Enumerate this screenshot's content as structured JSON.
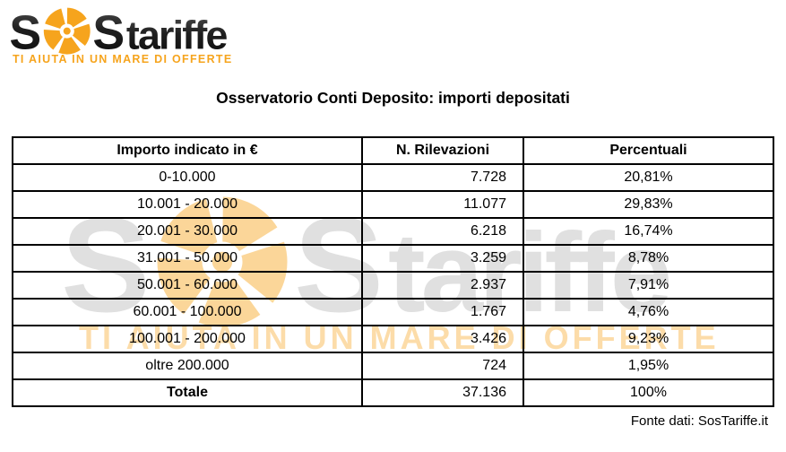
{
  "logo": {
    "s1": "S",
    "s2": "S",
    "rest": "tariffe",
    "tagline": "TI AIUTA IN UN MARE DI OFFERTE",
    "orange": "#F6A41D",
    "dark": "#1c1c1c"
  },
  "title": "Osservatorio Conti Deposito: importi depositati",
  "table": {
    "columns": [
      "Importo indicato in €",
      "N. Rilevazioni",
      "Percentuali"
    ],
    "rows": [
      {
        "importo": "0-10.000",
        "rilevazioni": "7.728",
        "percentuale": "20,81%"
      },
      {
        "importo": "10.001 - 20.000",
        "rilevazioni": "11.077",
        "percentuale": "29,83%"
      },
      {
        "importo": "20.001 - 30.000",
        "rilevazioni": "6.218",
        "percentuale": "16,74%"
      },
      {
        "importo": "31.001 - 50.000",
        "rilevazioni": "3.259",
        "percentuale": "8,78%"
      },
      {
        "importo": "50.001 - 60.000",
        "rilevazioni": "2.937",
        "percentuale": "7,91%"
      },
      {
        "importo": "60.001 - 100.000",
        "rilevazioni": "1.767",
        "percentuale": "4,76%"
      },
      {
        "importo": "100.001 - 200.000",
        "rilevazioni": "3.426",
        "percentuale": "9,23%"
      },
      {
        "importo": "oltre 200.000",
        "rilevazioni": "724",
        "percentuale": "1,95%"
      },
      {
        "importo": "Totale",
        "rilevazioni": "37.136",
        "percentuale": "100%",
        "bold": true
      }
    ]
  },
  "footer": {
    "source": "Fonte dati: SosTariffe.it"
  },
  "chart_data": {
    "type": "table",
    "title": "Osservatorio Conti Deposito: importi depositati",
    "columns": [
      "Importo indicato in €",
      "N. Rilevazioni",
      "Percentuali"
    ],
    "categories": [
      "0-10.000",
      "10.001 - 20.000",
      "20.001 - 30.000",
      "31.001 - 50.000",
      "50.001 - 60.000",
      "60.001 - 100.000",
      "100.001 - 200.000",
      "oltre 200.000"
    ],
    "series": [
      {
        "name": "N. Rilevazioni",
        "values": [
          7728,
          11077,
          6218,
          3259,
          2937,
          1767,
          3426,
          724
        ]
      },
      {
        "name": "Percentuali",
        "values": [
          20.81,
          29.83,
          16.74,
          8.78,
          7.91,
          4.76,
          9.23,
          1.95
        ]
      }
    ],
    "total": {
      "label": "Totale",
      "rilevazioni": 37136,
      "percentuale": 100
    },
    "source": "Fonte dati: SosTariffe.it"
  }
}
